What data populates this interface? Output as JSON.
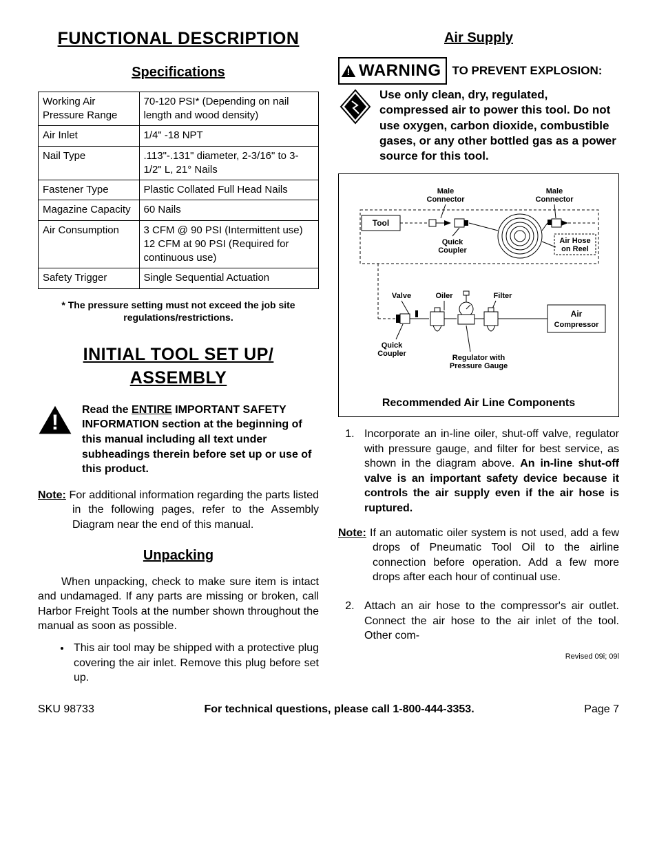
{
  "left": {
    "heading_functional": "FUNCTIONAL DESCRIPTION",
    "heading_specs": "Specifications",
    "spec_table": {
      "rows": [
        {
          "label": "Working Air Pressure Range",
          "value": "70-120 PSI* (Depending on nail length and wood density)"
        },
        {
          "label": "Air Inlet",
          "value": "1/4\" -18 NPT"
        },
        {
          "label": "Nail Type",
          "value": ".113\"-.131\" diameter, 2-3/16\" to 3-1/2\" L, 21° Nails"
        },
        {
          "label": "Fastener Type",
          "value": "Plastic Collated Full Head Nails"
        },
        {
          "label": "Magazine Capacity",
          "value": "60 Nails"
        },
        {
          "label": "Air Consumption",
          "value": "3 CFM @ 90 PSI (Intermittent use)\n12 CFM at 90 PSI (Required for continuous use)"
        },
        {
          "label": "Safety Trigger",
          "value": "Single Sequential Actuation"
        }
      ]
    },
    "footnote": "* The pressure setting must not exceed the job site regulations/restrictions.",
    "heading_setup": "INITIAL TOOL SET UP/ ASSEMBLY",
    "safety_prefix": "Read the ",
    "safety_entire": "ENTIRE",
    "safety_rest": " IMPORTANT SAFETY INFORMATION section at the beginning of this manual including all text under subheadings therein before set up or use of this product.",
    "note_label": "Note:",
    "note_text": "  For additional information regarding the parts listed in the following pages, refer to the Assembly Diagram near the end of this manual.",
    "heading_unpack": "Unpacking",
    "unpack_para": "When unpacking, check to make sure item is intact and undamaged.  If any parts are missing or broken, call Harbor Freight Tools at the number shown throughout the manual as soon as possible.",
    "unpack_bullet": "This air tool may be shipped with a protective plug covering the air inlet. Remove this plug before set up."
  },
  "right": {
    "heading_air": "Air Supply",
    "warning_word": "WARNING",
    "warn_head": "TO PREVENT EXPLOSION:",
    "explosion_text": "Use only clean, dry, regulated, compressed air to power this tool.  Do not use oxygen, carbon dioxide, combustible gases, or any other bottled gas as a power source for this tool.",
    "diagram": {
      "labels": {
        "male1": "Male Connector",
        "male2": "Male Connector",
        "tool": "Tool",
        "quick1": "Quick Coupler",
        "airhose": "Air Hose on Reel",
        "valve": "Valve",
        "oiler": "Oiler",
        "filter": "Filter",
        "aircomp": "Air Compressor",
        "quick2": "Quick Coupler",
        "regulator": "Regulator with Pressure Gauge"
      },
      "caption": "Recommended Air Line Components"
    },
    "step1_pre": "Incorporate an in-line oiler, shut-off valve, regulator with pressure gauge, and filter for best service, as shown in the diagram above.  ",
    "step1_bold": "An in-line shut-off valve is an important safety device because it controls the air supply even if the air hose is ruptured.",
    "note_label": "Note:",
    "note2_text": "  If an automatic oiler system is not used, add a few drops of Pneumatic Tool Oil to the airline connection before operation.  Add a few more drops after each hour of continual use.",
    "step2": "Attach an air hose to the compressor's air outlet.  Connect the air hose to the air inlet of the tool.  Other com-",
    "revised": "Revised 09i; 09l"
  },
  "footer": {
    "sku": "SKU 98733",
    "mid": "For technical questions, please call 1-800-444-3353.",
    "page": "Page 7"
  },
  "colors": {
    "text": "#000000",
    "border": "#000000",
    "bg": "#ffffff"
  }
}
